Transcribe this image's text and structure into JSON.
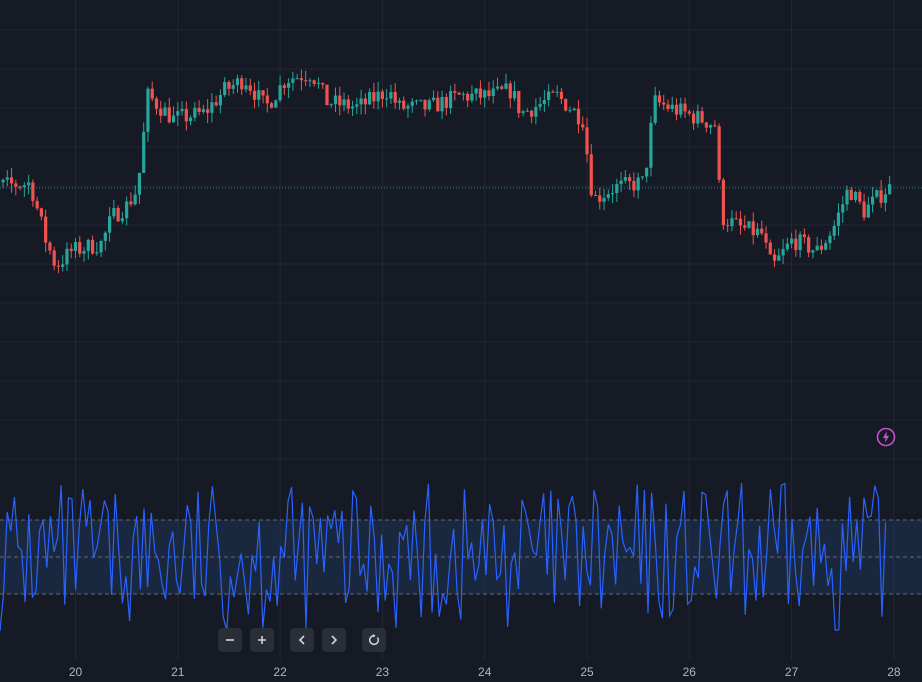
{
  "chart_data": [
    {
      "type": "candlestick",
      "x_ticks": [
        "20",
        "21",
        "22",
        "23",
        "24",
        "25",
        "26",
        "27",
        "28"
      ],
      "reference_line": 1.0,
      "segments": [
        {
          "day": 19.3,
          "value": 1.2
        },
        {
          "day": 19.6,
          "value": 1.4
        },
        {
          "day": 19.75,
          "value": -3.5
        },
        {
          "day": 19.85,
          "value": -5.8
        },
        {
          "day": 20.0,
          "value": -4.5
        },
        {
          "day": 20.3,
          "value": -3.8
        },
        {
          "day": 20.4,
          "value": -1.5
        },
        {
          "day": 20.55,
          "value": -0.5
        },
        {
          "day": 20.65,
          "value": 1.0
        },
        {
          "day": 20.75,
          "value": 9.0
        },
        {
          "day": 21.0,
          "value": 7.0
        },
        {
          "day": 21.3,
          "value": 7.5
        },
        {
          "day": 21.5,
          "value": 9.5
        },
        {
          "day": 21.7,
          "value": 10.5
        },
        {
          "day": 21.9,
          "value": 8.0
        },
        {
          "day": 22.1,
          "value": 10.5
        },
        {
          "day": 22.35,
          "value": 11.0
        },
        {
          "day": 22.5,
          "value": 8.5
        },
        {
          "day": 22.8,
          "value": 8.0
        },
        {
          "day": 23.1,
          "value": 9.5
        },
        {
          "day": 23.2,
          "value": 8.0
        },
        {
          "day": 23.5,
          "value": 8.0
        },
        {
          "day": 23.8,
          "value": 9.0
        },
        {
          "day": 24.1,
          "value": 9.0
        },
        {
          "day": 24.3,
          "value": 9.5
        },
        {
          "day": 24.4,
          "value": 7.5
        },
        {
          "day": 24.75,
          "value": 9.0
        },
        {
          "day": 25.0,
          "value": 7.0
        },
        {
          "day": 25.1,
          "value": 0.0
        },
        {
          "day": 25.3,
          "value": 1.0
        },
        {
          "day": 25.6,
          "value": 1.5
        },
        {
          "day": 25.7,
          "value": 8.5
        },
        {
          "day": 26.0,
          "value": 7.5
        },
        {
          "day": 26.3,
          "value": 6.5
        },
        {
          "day": 26.35,
          "value": -1.5
        },
        {
          "day": 26.55,
          "value": -2.5
        },
        {
          "day": 26.75,
          "value": -3.0
        },
        {
          "day": 26.85,
          "value": -6.0
        },
        {
          "day": 27.05,
          "value": -3.5
        },
        {
          "day": 27.3,
          "value": -4.5
        },
        {
          "day": 27.45,
          "value": -2.5
        },
        {
          "day": 27.6,
          "value": 1.0
        },
        {
          "day": 27.75,
          "value": -1.0
        },
        {
          "day": 27.98,
          "value": 1.0
        }
      ],
      "oscillator": {
        "type": "line",
        "upper_band": 1,
        "middle": 0,
        "lower_band": -1,
        "range": [
          -2.2,
          2.2
        ]
      }
    }
  ]
}
